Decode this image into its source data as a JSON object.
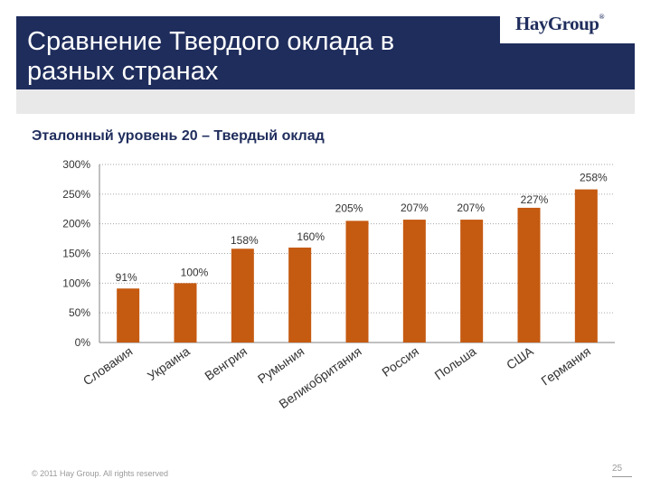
{
  "header": {
    "title": "Сравнение Твердого оклада в разных странах",
    "logo": "HayGroup",
    "logo_mark": "®"
  },
  "subtitle": "Эталонный уровень 20 – Твердый оклад",
  "footer": {
    "copyright": "© 2011 Hay Group. All rights reserved",
    "page_number": "25"
  },
  "colors": {
    "bar": "#c55a11",
    "header": "#1f2d5c",
    "grid": "#a6a6a6"
  },
  "chart_data": {
    "type": "bar",
    "categories": [
      "Словакия",
      "Украина",
      "Венгрия",
      "Румыния",
      "Великобритания",
      "Россия",
      "Польша",
      "США",
      "Германия"
    ],
    "values": [
      91,
      100,
      158,
      160,
      205,
      207,
      207,
      227,
      258
    ],
    "data_labels": [
      "91%",
      "100%",
      "158%",
      "160%",
      "205%",
      "207%",
      "207%",
      "227%",
      "258%"
    ],
    "y_ticks": [
      "0%",
      "50%",
      "100%",
      "150%",
      "200%",
      "250%",
      "300%"
    ],
    "ylim": [
      0,
      300
    ],
    "grid": true,
    "legend": "none"
  }
}
